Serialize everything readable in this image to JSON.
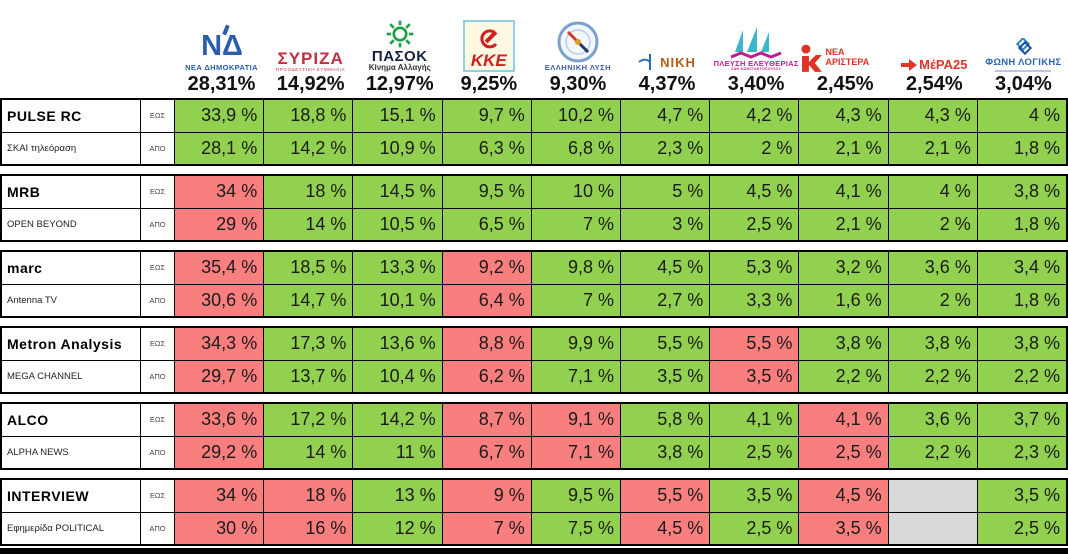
{
  "colors": {
    "in_range": "#92d050",
    "out_of_range": "#f97f7f",
    "no_estimate": "#d9d9d9"
  },
  "chart_data": {
    "type": "table",
    "unit": "%",
    "row_label_to": "ΕΩΣ",
    "row_label_from": "ΑΠΟ",
    "parties": [
      {
        "name": "ΝΕΑ ΔΗΜΟΚΡΑΤΙΑ",
        "result": "28,31%"
      },
      {
        "name": "ΣΥΡΙΖΑ",
        "sub": "ΠΡΟΟΔΕΥΤΙΚΗ ΣΥΜΜΑΧΙΑ",
        "result": "14,92%"
      },
      {
        "name": "ΠΑΣΟΚ",
        "sub": "Κίνημα Αλλαγής",
        "result": "12,97%"
      },
      {
        "name": "ΚΚΕ",
        "result": "9,25%"
      },
      {
        "name": "ΕΛΛΗΝΙΚΗ ΛΥΣΗ",
        "result": "9,30%"
      },
      {
        "name": "ΝΙΚΗ",
        "result": "4,37%"
      },
      {
        "name": "ΠΛΕΥΣΗ ΕΛΕΥΘΕΡΙΑΣ",
        "sub": "ΖΩΗ ΚΩΝΣΤΑΝΤΟΠΟΥΛΟΥ",
        "result": "3,40%"
      },
      {
        "name": "ΝΕΑ ΑΡΙΣΤΕΡΑ",
        "result": "2,45%"
      },
      {
        "name": "ΜέΡΑ25",
        "result": "2,54%"
      },
      {
        "name": "ΦΩΝΗ ΛΟΓΙΚΗΣ",
        "result": "3,04%"
      }
    ],
    "pollsters": [
      {
        "name": "PULSE RC",
        "media": "ΣΚΑΙ τηλεόραση",
        "to": {
          "values": [
            "33,9 %",
            "18,8 %",
            "15,1 %",
            "9,7 %",
            "10,2 %",
            "4,7 %",
            "4,2 %",
            "4,3 %",
            "4,3 %",
            "4 %"
          ],
          "status": [
            "g",
            "g",
            "g",
            "g",
            "g",
            "g",
            "g",
            "g",
            "g",
            "g"
          ]
        },
        "from": {
          "values": [
            "28,1 %",
            "14,2 %",
            "10,9 %",
            "6,3 %",
            "6,8 %",
            "2,3 %",
            "2 %",
            "2,1 %",
            "2,1 %",
            "1,8 %"
          ],
          "status": [
            "g",
            "g",
            "g",
            "g",
            "g",
            "g",
            "g",
            "g",
            "g",
            "g"
          ]
        }
      },
      {
        "name": "MRB",
        "media": "OPEN BEYOND",
        "to": {
          "values": [
            "34 %",
            "18 %",
            "14,5 %",
            "9,5 %",
            "10 %",
            "5 %",
            "4,5 %",
            "4,1 %",
            "4 %",
            "3,8 %"
          ],
          "status": [
            "r",
            "g",
            "g",
            "g",
            "g",
            "g",
            "g",
            "g",
            "g",
            "g"
          ]
        },
        "from": {
          "values": [
            "29 %",
            "14 %",
            "10,5 %",
            "6,5 %",
            "7 %",
            "3 %",
            "2,5 %",
            "2,1 %",
            "2 %",
            "1,8 %"
          ],
          "status": [
            "r",
            "g",
            "g",
            "g",
            "g",
            "g",
            "g",
            "g",
            "g",
            "g"
          ]
        }
      },
      {
        "name": "marc",
        "media": "Antenna TV",
        "to": {
          "values": [
            "35,4 %",
            "18,5 %",
            "13,3 %",
            "9,2 %",
            "9,8 %",
            "4,5 %",
            "5,3 %",
            "3,2 %",
            "3,6 %",
            "3,4 %"
          ],
          "status": [
            "r",
            "g",
            "g",
            "r",
            "g",
            "g",
            "g",
            "g",
            "g",
            "g"
          ]
        },
        "from": {
          "values": [
            "30,6 %",
            "14,7 %",
            "10,1 %",
            "6,4 %",
            "7 %",
            "2,7 %",
            "3,3 %",
            "1,6 %",
            "2 %",
            "1,8 %"
          ],
          "status": [
            "r",
            "g",
            "g",
            "r",
            "g",
            "g",
            "g",
            "g",
            "g",
            "g"
          ]
        }
      },
      {
        "name": "Metron Analysis",
        "media": "MEGA CHANNEL",
        "to": {
          "values": [
            "34,3 %",
            "17,3 %",
            "13,6 %",
            "8,8 %",
            "9,9 %",
            "5,5 %",
            "5,5 %",
            "3,8 %",
            "3,8 %",
            "3,8 %"
          ],
          "status": [
            "r",
            "g",
            "g",
            "r",
            "g",
            "g",
            "r",
            "g",
            "g",
            "g"
          ]
        },
        "from": {
          "values": [
            "29,7 %",
            "13,7 %",
            "10,4 %",
            "6,2 %",
            "7,1 %",
            "3,5 %",
            "3,5 %",
            "2,2 %",
            "2,2 %",
            "2,2 %"
          ],
          "status": [
            "r",
            "g",
            "g",
            "r",
            "g",
            "g",
            "r",
            "g",
            "g",
            "g"
          ]
        }
      },
      {
        "name": "ALCO",
        "media": "ALPHA NEWS",
        "to": {
          "values": [
            "33,6 %",
            "17,2 %",
            "14,2 %",
            "8,7 %",
            "9,1 %",
            "5,8 %",
            "4,1 %",
            "4,1 %",
            "3,6 %",
            "3,7 %"
          ],
          "status": [
            "r",
            "g",
            "g",
            "r",
            "r",
            "g",
            "g",
            "r",
            "g",
            "g"
          ]
        },
        "from": {
          "values": [
            "29,2 %",
            "14 %",
            "11 %",
            "6,7 %",
            "7,1 %",
            "3,8 %",
            "2,5 %",
            "2,5 %",
            "2,2 %",
            "2,3 %"
          ],
          "status": [
            "r",
            "g",
            "g",
            "r",
            "r",
            "g",
            "g",
            "r",
            "g",
            "g"
          ]
        }
      },
      {
        "name": "INTERVIEW",
        "media": "Εφημερίδα POLITICAL",
        "to": {
          "values": [
            "34 %",
            "18 %",
            "13 %",
            "9 %",
            "9,5 %",
            "5,5 %",
            "3,5 %",
            "4,5 %",
            "",
            "3,5 %"
          ],
          "status": [
            "r",
            "r",
            "g",
            "r",
            "g",
            "r",
            "g",
            "r",
            "x",
            "g"
          ]
        },
        "from": {
          "values": [
            "30 %",
            "16 %",
            "12 %",
            "7 %",
            "7,5 %",
            "4,5 %",
            "2,5 %",
            "3,5 %",
            "",
            "2,5 %"
          ],
          "status": [
            "r",
            "r",
            "g",
            "r",
            "g",
            "r",
            "g",
            "r",
            "x",
            "g"
          ]
        }
      }
    ]
  }
}
